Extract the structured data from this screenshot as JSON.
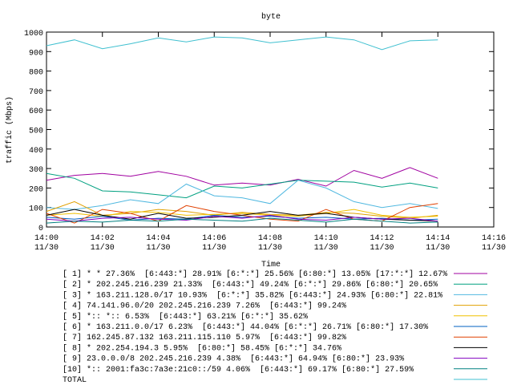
{
  "chart_data": {
    "type": "line",
    "title": "byte",
    "x_label": "Time",
    "y_label": "traffic (Mbps)",
    "x": [
      "14:00",
      "14:01",
      "14:02",
      "14:03",
      "14:04",
      "14:05",
      "14:06",
      "14:07",
      "14:08",
      "14:09",
      "14:10",
      "14:11",
      "14:12",
      "14:13",
      "14:14"
    ],
    "xlim": [
      "14:00",
      "14:16"
    ],
    "xticks": [
      "14:00",
      "14:02",
      "14:04",
      "14:06",
      "14:08",
      "14:10",
      "14:12",
      "14:14",
      "14:16"
    ],
    "x_date": "11/30",
    "ylim": [
      0,
      1000
    ],
    "yticks": [
      0,
      100,
      200,
      300,
      400,
      500,
      600,
      700,
      800,
      900,
      1000
    ],
    "series": [
      {
        "name": "[ 1] * * 27.36%  [6:443:*] 28.91% [6:*:*] 25.56% [6:80:*] 13.05% [17:*:*] 12.67%",
        "color": "#a000a0",
        "values": [
          240,
          265,
          275,
          260,
          285,
          260,
          215,
          225,
          215,
          245,
          210,
          290,
          250,
          305,
          250
        ]
      },
      {
        "name": "[ 2] * 202.245.216.239 21.33%  [6:443:*] 49.24% [6:*:*] 29.86% [6:80:*] 20.65%",
        "color": "#00a080",
        "values": [
          275,
          250,
          185,
          180,
          165,
          150,
          210,
          200,
          220,
          240,
          235,
          230,
          205,
          225,
          200
        ]
      },
      {
        "name": "[ 3] * 163.211.128.0/17 10.93%  [6:*:*] 35.82% [6:443:*] 24.93% [6:80:*] 22.81%",
        "color": "#50b8e0",
        "values": [
          100,
          90,
          110,
          140,
          120,
          220,
          160,
          150,
          120,
          240,
          200,
          130,
          100,
          120,
          95
        ]
      },
      {
        "name": "[ 4] 74.141.96.0/20 202.245.216.239 7.26%  [6:443:*] 99.24%",
        "color": "#e0a000",
        "values": [
          80,
          130,
          60,
          70,
          90,
          80,
          60,
          75,
          65,
          60,
          75,
          70,
          55,
          45,
          60
        ]
      },
      {
        "name": "[ 5] *:: *:: 6.53%  [6:443:*] 63.21% [6:*:*] 35.62%",
        "color": "#f0c000",
        "values": [
          60,
          70,
          55,
          80,
          75,
          60,
          65,
          70,
          60,
          55,
          70,
          90,
          60,
          50,
          55
        ]
      },
      {
        "name": "[ 6] * 163.211.0.0/17 6.23%  [6:443:*] 44.04% [6:*:*] 26.71% [6:80:*] 17.30%",
        "color": "#0060c0",
        "values": [
          50,
          40,
          55,
          35,
          45,
          40,
          60,
          50,
          55,
          45,
          50,
          40,
          45,
          35,
          40
        ]
      },
      {
        "name": "[ 7] 162.245.87.132 163.211.115.110 5.97%  [6:443:*] 99.82%",
        "color": "#e04000",
        "values": [
          70,
          20,
          90,
          70,
          30,
          110,
          80,
          60,
          40,
          30,
          90,
          40,
          30,
          100,
          120
        ]
      },
      {
        "name": "[ 8] * 202.254.194.3 5.95%  [6:80:*] 58.45% [6:*:*] 34.76%",
        "color": "#000000",
        "values": [
          60,
          90,
          60,
          40,
          70,
          45,
          50,
          60,
          80,
          60,
          70,
          50,
          40,
          35,
          30
        ]
      },
      {
        "name": "[ 9] 23.0.0.0/8 202.245.216.239 4.38%  [6:443:*] 64.94% [6:80:*] 23.93%",
        "color": "#8000c0",
        "values": [
          40,
          30,
          45,
          50,
          40,
          35,
          55,
          45,
          60,
          40,
          35,
          50,
          40,
          45,
          30
        ]
      },
      {
        "name": "[10] *:: 2001:fa3c:7a3e:21c0::/59 4.06%  [6:443:*] 69.17% [6:80:*] 27.59%",
        "color": "#008080",
        "values": [
          20,
          30,
          25,
          35,
          30,
          40,
          35,
          30,
          45,
          35,
          25,
          40,
          30,
          20,
          25
        ]
      },
      {
        "name": "TOTAL",
        "color": "#40c0d0",
        "values": [
          930,
          960,
          915,
          940,
          970,
          950,
          975,
          970,
          945,
          960,
          975,
          960,
          910,
          955,
          960
        ]
      }
    ]
  }
}
